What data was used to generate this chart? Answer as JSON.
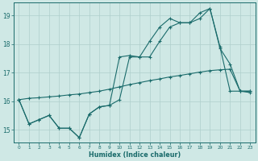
{
  "xlabel": "Humidex (Indice chaleur)",
  "bg_color": "#cfe8e5",
  "line_color": "#1a6b6b",
  "grid_color": "#aecfcc",
  "spine_color": "#1a6b6b",
  "xlim": [
    -0.5,
    23.5
  ],
  "ylim": [
    14.55,
    19.45
  ],
  "yticks": [
    15,
    16,
    17,
    18,
    19
  ],
  "xticks": [
    0,
    1,
    2,
    3,
    4,
    5,
    6,
    7,
    8,
    9,
    10,
    11,
    12,
    13,
    14,
    15,
    16,
    17,
    18,
    19,
    20,
    21,
    22,
    23
  ],
  "line1_x": [
    0,
    1,
    2,
    3,
    4,
    5,
    6,
    7,
    8,
    9,
    10,
    11,
    12,
    13,
    14,
    15,
    16,
    17,
    18,
    19,
    20,
    21,
    22,
    23
  ],
  "line1_y": [
    16.05,
    16.1,
    16.12,
    16.15,
    16.18,
    16.22,
    16.25,
    16.3,
    16.35,
    16.42,
    16.5,
    16.58,
    16.65,
    16.72,
    16.78,
    16.85,
    16.9,
    16.96,
    17.02,
    17.07,
    17.1,
    17.12,
    16.35,
    16.3
  ],
  "line2_x": [
    0,
    1,
    2,
    3,
    4,
    5,
    6,
    7,
    8,
    9,
    10,
    11,
    12,
    13,
    14,
    15,
    16,
    17,
    18,
    19,
    20,
    21,
    22,
    23
  ],
  "line2_y": [
    16.05,
    15.2,
    15.35,
    15.5,
    15.05,
    15.05,
    14.72,
    15.55,
    15.8,
    15.85,
    17.55,
    17.6,
    17.55,
    18.1,
    18.6,
    18.9,
    18.75,
    18.75,
    19.1,
    19.25,
    17.9,
    16.35,
    16.35,
    16.35
  ],
  "line3_x": [
    0,
    1,
    2,
    3,
    4,
    5,
    6,
    7,
    8,
    9,
    10,
    11,
    12,
    13,
    14,
    15,
    16,
    17,
    18,
    19,
    20,
    21,
    22,
    23
  ],
  "line3_y": [
    16.05,
    15.2,
    15.35,
    15.5,
    15.05,
    15.05,
    14.72,
    15.55,
    15.8,
    15.85,
    16.05,
    17.55,
    17.55,
    17.55,
    18.1,
    18.6,
    18.75,
    18.75,
    18.9,
    19.25,
    17.85,
    17.3,
    16.35,
    16.35
  ]
}
